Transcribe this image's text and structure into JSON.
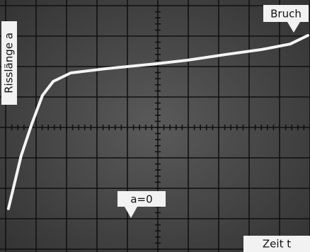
{
  "chart_data": {
    "type": "line",
    "x_label": "Zeit t",
    "y_label": "Risslänge a",
    "annotations": [
      {
        "text": "Bruch"
      },
      {
        "text": "a=0"
      }
    ],
    "x": [
      0.09,
      0.51,
      0.86,
      1.21,
      1.56,
      2.14,
      3.3,
      4.93,
      5.98,
      7.26,
      8.42,
      9.35,
      9.93
    ],
    "values": [
      1.33,
      3.07,
      4.12,
      5.05,
      5.51,
      5.79,
      5.93,
      6.09,
      6.21,
      6.4,
      6.56,
      6.74,
      7.02
    ],
    "color": "#f4f4f4",
    "xlim": [
      0,
      10
    ],
    "ylim": [
      0,
      8
    ],
    "grid": true
  }
}
